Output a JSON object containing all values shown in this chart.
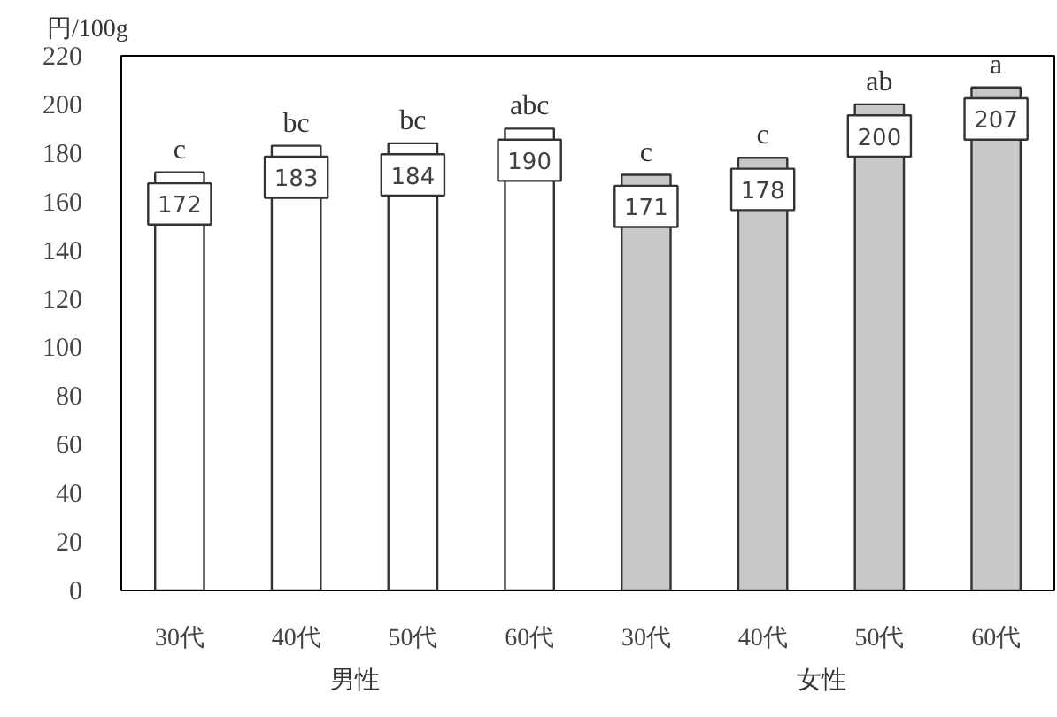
{
  "chart_data": {
    "type": "bar",
    "ylabel": "円/100g",
    "categories": [
      "30代",
      "40代",
      "50代",
      "60代",
      "30代",
      "40代",
      "50代",
      "60代"
    ],
    "series": [
      {
        "colors": [
          "#ffffff",
          "#ffffff",
          "#ffffff",
          "#ffffff",
          "#c8c8c8",
          "#c8c8c8",
          "#c8c8c8",
          "#c8c8c8"
        ],
        "values": [
          172,
          183,
          184,
          190,
          171,
          178,
          200,
          207
        ]
      }
    ],
    "data_labels": true,
    "ylim": [
      0,
      220
    ],
    "yticks": [
      0,
      20,
      40,
      60,
      80,
      100,
      120,
      140,
      160,
      180,
      200,
      220
    ],
    "grid": false,
    "annotations": [
      "男性",
      "女性",
      "c",
      "bc",
      "bc",
      "abc",
      "c",
      "c",
      "ab",
      "a"
    ]
  }
}
